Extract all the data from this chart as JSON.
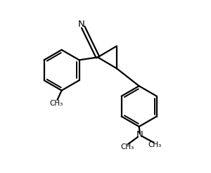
{
  "bg_color": "#ffffff",
  "line_color": "#000000",
  "line_width": 1.6,
  "figsize": [
    3.0,
    2.46
  ],
  "dpi": 100,
  "xlim": [
    0,
    1
  ],
  "ylim": [
    0,
    1
  ]
}
